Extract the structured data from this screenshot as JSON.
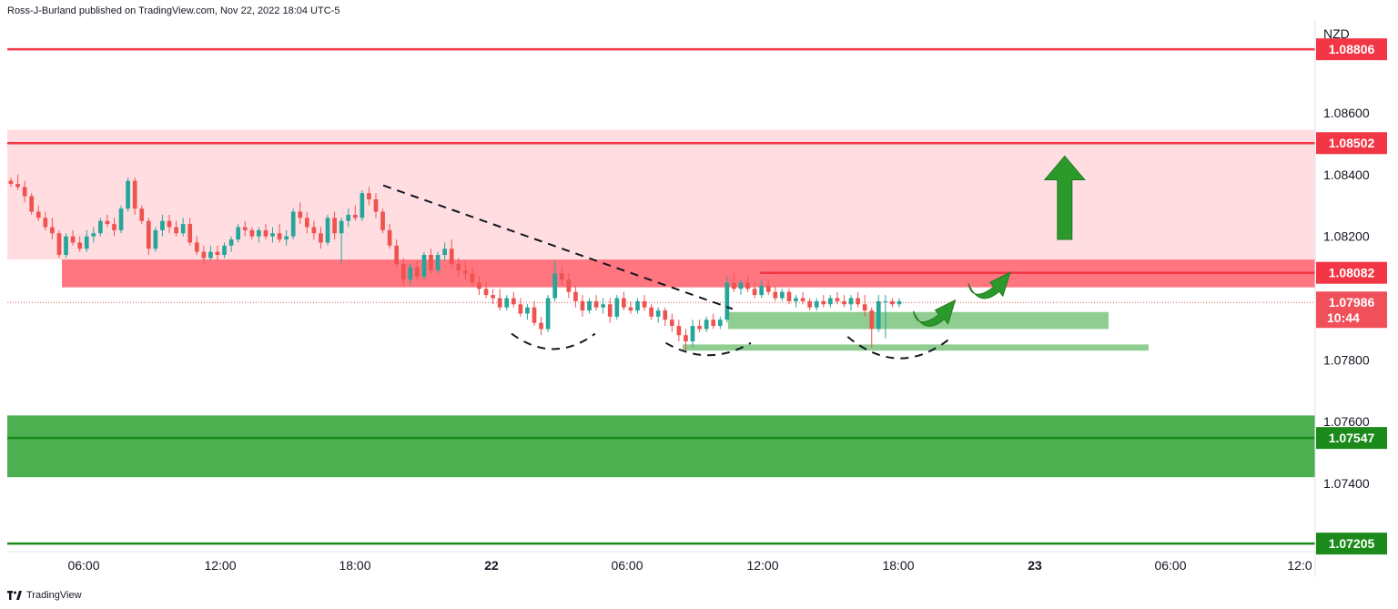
{
  "header": {
    "attribution": "Ross-J-Burland published on TradingView.com, Nov 22, 2022 18:04 UTC-5"
  },
  "footer": {
    "logo_text": "TradingView"
  },
  "colors": {
    "up": "#26a69a",
    "down": "#ef5350",
    "resistance_line": "#f23645",
    "support_line": "#089981",
    "red_zone": "#ffdde1",
    "red_band": "#ff7580",
    "green_zone": "#4caf50",
    "green_line": "#1b8a1b",
    "arrow": "#2b9a2b"
  },
  "chart_data": {
    "type": "candlestick",
    "symbol_currency": "NZD",
    "ylim": [
      1.0712,
      1.0892
    ],
    "y_ticks": [
      "1.08600",
      "1.08400",
      "1.08200",
      "1.07800",
      "1.07600",
      "1.07400"
    ],
    "x_ticks": [
      "06:00",
      "12:00",
      "18:00",
      "22",
      "06:00",
      "12:00",
      "18:00",
      "23",
      "06:00",
      "12:0"
    ],
    "price_tags": [
      {
        "label": "1.08806",
        "value": 1.08806,
        "color": "#f23645"
      },
      {
        "label": "1.08502",
        "value": 1.08502,
        "color": "#f23645"
      },
      {
        "label": "1.08082",
        "value": 1.08082,
        "color": "#f23645"
      },
      {
        "label": "1.07986",
        "countdown": "10:44",
        "value": 1.07986,
        "color": "#f0505a"
      },
      {
        "label": "1.07547",
        "value": 1.07547,
        "color": "#1b8a1b"
      },
      {
        "label": "1.07205",
        "value": 1.07205,
        "color": "#1b8a1b"
      }
    ],
    "horizontal_lines": [
      {
        "value": 1.08806,
        "color": "#f23645"
      },
      {
        "value": 1.08502,
        "color": "#f23645"
      },
      {
        "value": 1.08082,
        "color": "#f23645"
      },
      {
        "value": 1.07547,
        "color": "#1b8a1b"
      },
      {
        "value": 1.07205,
        "color": "#1b8a1b"
      }
    ],
    "zones": [
      {
        "from": 1.08125,
        "to": 1.08545,
        "color": "#ffdde1"
      },
      {
        "from": 1.08035,
        "to": 1.08125,
        "color": "#ff7580"
      },
      {
        "from": 1.0742,
        "to": 1.0762,
        "color": "#4caf50"
      },
      {
        "from": 1.079,
        "to": 1.07955,
        "color": "#7cc47c"
      },
      {
        "from": 1.0783,
        "to": 1.0785,
        "color": "#7cc47c"
      }
    ],
    "candles": [
      [
        1.0838,
        1.0839,
        1.0836,
        1.0837
      ],
      [
        1.0837,
        1.084,
        1.0835,
        1.0836
      ],
      [
        1.0836,
        1.0838,
        1.0831,
        1.0833
      ],
      [
        1.0833,
        1.0834,
        1.0827,
        1.0828
      ],
      [
        1.0828,
        1.083,
        1.0825,
        1.0826
      ],
      [
        1.0826,
        1.0828,
        1.0822,
        1.0823
      ],
      [
        1.0823,
        1.0826,
        1.0819,
        1.0821
      ],
      [
        1.0821,
        1.0822,
        1.0813,
        1.0814
      ],
      [
        1.0814,
        1.0821,
        1.0813,
        1.082
      ],
      [
        1.082,
        1.0822,
        1.0817,
        1.0818
      ],
      [
        1.0818,
        1.082,
        1.0815,
        1.0816
      ],
      [
        1.0816,
        1.0822,
        1.0815,
        1.082
      ],
      [
        1.082,
        1.0823,
        1.0818,
        1.0821
      ],
      [
        1.0821,
        1.0826,
        1.082,
        1.0825
      ],
      [
        1.0825,
        1.0827,
        1.0823,
        1.0824
      ],
      [
        1.0824,
        1.0826,
        1.082,
        1.0822
      ],
      [
        1.0822,
        1.083,
        1.0821,
        1.0829
      ],
      [
        1.0829,
        1.0839,
        1.0828,
        1.0838
      ],
      [
        1.0838,
        1.0839,
        1.0827,
        1.0829
      ],
      [
        1.0829,
        1.083,
        1.0824,
        1.0825
      ],
      [
        1.0825,
        1.0826,
        1.0814,
        1.0816
      ],
      [
        1.0816,
        1.0823,
        1.0815,
        1.0822
      ],
      [
        1.0822,
        1.0827,
        1.082,
        1.0825
      ],
      [
        1.0825,
        1.0827,
        1.0821,
        1.0823
      ],
      [
        1.0823,
        1.0825,
        1.082,
        1.0821
      ],
      [
        1.0821,
        1.0826,
        1.082,
        1.0824
      ],
      [
        1.0824,
        1.0826,
        1.0817,
        1.0818
      ],
      [
        1.0818,
        1.082,
        1.0814,
        1.0815
      ],
      [
        1.0815,
        1.0817,
        1.0811,
        1.0813
      ],
      [
        1.0813,
        1.0817,
        1.0812,
        1.0815
      ],
      [
        1.0815,
        1.0817,
        1.0812,
        1.0814
      ],
      [
        1.0814,
        1.0818,
        1.0813,
        1.0817
      ],
      [
        1.0817,
        1.082,
        1.0815,
        1.0819
      ],
      [
        1.0819,
        1.0824,
        1.0818,
        1.0823
      ],
      [
        1.0823,
        1.0825,
        1.082,
        1.0822
      ],
      [
        1.0822,
        1.0823,
        1.0819,
        1.082
      ],
      [
        1.082,
        1.0823,
        1.0818,
        1.0822
      ],
      [
        1.0822,
        1.0824,
        1.0819,
        1.082
      ],
      [
        1.082,
        1.0823,
        1.0818,
        1.0821
      ],
      [
        1.0821,
        1.0824,
        1.0818,
        1.0819
      ],
      [
        1.0819,
        1.0822,
        1.0817,
        1.082
      ],
      [
        1.082,
        1.0829,
        1.0819,
        1.0828
      ],
      [
        1.0828,
        1.0831,
        1.0824,
        1.0826
      ],
      [
        1.0826,
        1.0828,
        1.0821,
        1.0823
      ],
      [
        1.0823,
        1.0825,
        1.0819,
        1.0821
      ],
      [
        1.0821,
        1.0823,
        1.0816,
        1.0818
      ],
      [
        1.0818,
        1.0827,
        1.0817,
        1.0826
      ],
      [
        1.0826,
        1.0828,
        1.0819,
        1.0821
      ],
      [
        1.0821,
        1.0826,
        1.0811,
        1.0825
      ],
      [
        1.0825,
        1.0829,
        1.0823,
        1.0827
      ],
      [
        1.0827,
        1.083,
        1.0825,
        1.0826
      ],
      [
        1.0826,
        1.0835,
        1.0825,
        1.0834
      ],
      [
        1.0834,
        1.0836,
        1.083,
        1.0832
      ],
      [
        1.0832,
        1.0834,
        1.0826,
        1.0828
      ],
      [
        1.0828,
        1.0829,
        1.0821,
        1.0822
      ],
      [
        1.0822,
        1.0824,
        1.0816,
        1.0817
      ],
      [
        1.0817,
        1.0819,
        1.081,
        1.0811
      ],
      [
        1.0811,
        1.0813,
        1.0804,
        1.0806
      ],
      [
        1.0806,
        1.0811,
        1.0804,
        1.081
      ],
      [
        1.081,
        1.0812,
        1.0806,
        1.0807
      ],
      [
        1.0807,
        1.0815,
        1.0806,
        1.0814
      ],
      [
        1.0814,
        1.0816,
        1.0808,
        1.0809
      ],
      [
        1.0809,
        1.0815,
        1.0808,
        1.0814
      ],
      [
        1.0814,
        1.0818,
        1.0812,
        1.0816
      ],
      [
        1.0816,
        1.0819,
        1.081,
        1.0811
      ],
      [
        1.0811,
        1.0813,
        1.0807,
        1.0809
      ],
      [
        1.0809,
        1.0812,
        1.0806,
        1.0808
      ],
      [
        1.0808,
        1.081,
        1.0804,
        1.0805
      ],
      [
        1.0805,
        1.0807,
        1.0801,
        1.0803
      ],
      [
        1.0803,
        1.0805,
        1.08,
        1.0801
      ],
      [
        1.0801,
        1.0803,
        1.0798,
        1.08
      ],
      [
        1.08,
        1.0803,
        1.0796,
        1.0797
      ],
      [
        1.0797,
        1.0801,
        1.0796,
        1.08
      ],
      [
        1.08,
        1.0802,
        1.0797,
        1.0798
      ],
      [
        1.0798,
        1.08,
        1.0794,
        1.0795
      ],
      [
        1.0795,
        1.0798,
        1.0793,
        1.0797
      ],
      [
        1.0797,
        1.0799,
        1.0791,
        1.0792
      ],
      [
        1.0792,
        1.0794,
        1.0788,
        1.079
      ],
      [
        1.079,
        1.0801,
        1.0789,
        1.08
      ],
      [
        1.08,
        1.0812,
        1.0799,
        1.0808
      ],
      [
        1.0808,
        1.081,
        1.0804,
        1.0806
      ],
      [
        1.0806,
        1.0808,
        1.08,
        1.0802
      ],
      [
        1.0802,
        1.0804,
        1.0797,
        1.0799
      ],
      [
        1.0799,
        1.0801,
        1.0794,
        1.0796
      ],
      [
        1.0796,
        1.08,
        1.0795,
        1.0799
      ],
      [
        1.0799,
        1.0801,
        1.0796,
        1.0797
      ],
      [
        1.0797,
        1.08,
        1.0795,
        1.0798
      ],
      [
        1.0798,
        1.08,
        1.0792,
        1.0794
      ],
      [
        1.0794,
        1.0801,
        1.0793,
        1.08
      ],
      [
        1.08,
        1.0802,
        1.0796,
        1.0797
      ],
      [
        1.0797,
        1.0799,
        1.0795,
        1.0796
      ],
      [
        1.0796,
        1.08,
        1.0795,
        1.0799
      ],
      [
        1.0799,
        1.0801,
        1.0796,
        1.0797
      ],
      [
        1.0797,
        1.0798,
        1.0793,
        1.0794
      ],
      [
        1.0794,
        1.0797,
        1.0792,
        1.0796
      ],
      [
        1.0796,
        1.0797,
        1.0791,
        1.0793
      ],
      [
        1.0793,
        1.0795,
        1.0789,
        1.0791
      ],
      [
        1.0791,
        1.0793,
        1.0786,
        1.0788
      ],
      [
        1.0788,
        1.079,
        1.0783,
        1.0786
      ],
      [
        1.0786,
        1.0793,
        1.0784,
        1.0791
      ],
      [
        1.0791,
        1.0793,
        1.0789,
        1.079
      ],
      [
        1.079,
        1.0794,
        1.0789,
        1.0793
      ],
      [
        1.0793,
        1.0795,
        1.079,
        1.0791
      ],
      [
        1.0791,
        1.0794,
        1.079,
        1.0793
      ],
      [
        1.0793,
        1.0807,
        1.0792,
        1.0805
      ],
      [
        1.0805,
        1.0808,
        1.0802,
        1.0803
      ],
      [
        1.0803,
        1.0806,
        1.0801,
        1.0805
      ],
      [
        1.0805,
        1.0807,
        1.0802,
        1.0803
      ],
      [
        1.0803,
        1.0805,
        1.08,
        1.0801
      ],
      [
        1.0801,
        1.0806,
        1.08,
        1.0804
      ],
      [
        1.0804,
        1.0806,
        1.0801,
        1.0802
      ],
      [
        1.0802,
        1.0804,
        1.0799,
        1.08
      ],
      [
        1.08,
        1.0803,
        1.0799,
        1.0802
      ],
      [
        1.0802,
        1.0803,
        1.0798,
        1.0799
      ],
      [
        1.0799,
        1.0801,
        1.0797,
        1.08
      ],
      [
        1.08,
        1.0802,
        1.0798,
        1.0799
      ],
      [
        1.0799,
        1.08,
        1.0796,
        1.0797
      ],
      [
        1.0797,
        1.08,
        1.0796,
        1.0799
      ],
      [
        1.0799,
        1.0801,
        1.0797,
        1.0798
      ],
      [
        1.0798,
        1.0801,
        1.0797,
        1.08
      ],
      [
        1.08,
        1.0802,
        1.0798,
        1.0799
      ],
      [
        1.0799,
        1.0801,
        1.0797,
        1.0798
      ],
      [
        1.0798,
        1.0801,
        1.0796,
        1.08
      ],
      [
        1.08,
        1.0802,
        1.0797,
        1.0798
      ],
      [
        1.0798,
        1.0801,
        1.0794,
        1.0796
      ],
      [
        1.0796,
        1.0797,
        1.0784,
        1.079
      ],
      [
        1.079,
        1.0801,
        1.0789,
        1.0799
      ],
      [
        1.0799,
        1.0801,
        1.0787,
        1.0799
      ],
      [
        1.0799,
        1.08,
        1.0797,
        1.0798
      ],
      [
        1.0798,
        1.08,
        1.0797,
        1.0799
      ]
    ],
    "trendline": {
      "from": [
        0.2875,
        1.08365
      ],
      "to": [
        0.5545,
        1.07965
      ]
    },
    "arcs": [
      {
        "x0": 0.3855,
        "x1": 0.4495,
        "top": 1.07885,
        "bottom": 1.07835
      },
      {
        "x0": 0.5035,
        "x1": 0.5685,
        "top": 1.07855,
        "bottom": 1.07815
      },
      {
        "x0": 0.6425,
        "x1": 0.7225,
        "top": 1.07875,
        "bottom": 1.07805
      }
    ],
    "arrows": [
      {
        "kind": "up",
        "x": 0.8085,
        "base": 1.0819,
        "tip": 1.0846
      },
      {
        "kind": "curved",
        "x": 0.7515,
        "y": 1.0806
      },
      {
        "kind": "curved",
        "x": 0.7095,
        "y": 1.0797
      }
    ]
  }
}
